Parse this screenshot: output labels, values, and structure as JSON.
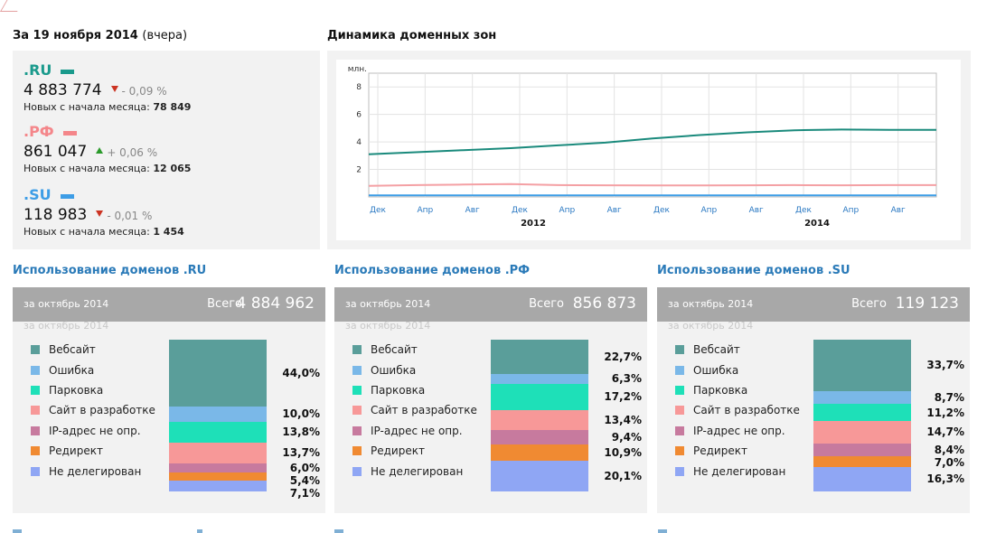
{
  "summary": {
    "title": "За 19 ноября 2014",
    "note": "(вчера)",
    "zones": [
      {
        "name": ".RU",
        "color": "#1a9a8c",
        "count": "4 883 774",
        "direction": "down",
        "change": "- 0,09 %",
        "new_label": "Новых с начала месяца:",
        "new_value": "78 849"
      },
      {
        "name": ".РФ",
        "color": "#f4868a",
        "count": "861 047",
        "direction": "up",
        "change": "+ 0,06 %",
        "new_label": "Новых с начала месяца:",
        "new_value": "12 065"
      },
      {
        "name": ".SU",
        "color": "#3d9de6",
        "count": "118 983",
        "direction": "down",
        "change": "- 0,01 %",
        "new_label": "Новых с начала месяца:",
        "new_value": "1 454"
      }
    ]
  },
  "dynamics": {
    "title": "Динамика доменных зон",
    "chart_data": {
      "type": "line",
      "ylabel": "млн.",
      "ylim": [
        0,
        9
      ],
      "y_ticks": [
        "2",
        "4",
        "6",
        "8"
      ],
      "x_ticks": [
        "Дек",
        "Апр",
        "Авг",
        "Дек",
        "Апр",
        "Авг",
        "Дек",
        "Апр",
        "Авг",
        "Дек",
        "Апр",
        "Авг"
      ],
      "x_years": [
        "2012",
        "2014"
      ],
      "x": [
        "2010-12",
        "2011-04",
        "2011-08",
        "2011-12",
        "2012-04",
        "2012-08",
        "2012-12",
        "2013-04",
        "2013-08",
        "2013-12",
        "2014-04",
        "2014-08",
        "2014-11"
      ],
      "grid": true,
      "series": [
        {
          "name": ".RU",
          "color": "#1a8a7c",
          "values": [
            3.1,
            3.25,
            3.4,
            3.55,
            3.75,
            3.95,
            4.25,
            4.5,
            4.7,
            4.85,
            4.9,
            4.88,
            4.88
          ]
        },
        {
          "name": ".РФ",
          "color": "#f4a0a4",
          "values": [
            0.8,
            0.86,
            0.9,
            0.93,
            0.86,
            0.85,
            0.84,
            0.84,
            0.85,
            0.86,
            0.85,
            0.86,
            0.86
          ]
        },
        {
          "name": ".SU",
          "color": "#3d9de6",
          "values": [
            0.12,
            0.12,
            0.12,
            0.12,
            0.12,
            0.12,
            0.12,
            0.12,
            0.12,
            0.12,
            0.12,
            0.12,
            0.12
          ]
        }
      ]
    }
  },
  "usage_legend": [
    {
      "label": "Вебсайт",
      "color": "#5a9e9a"
    },
    {
      "label": "Ошибка",
      "color": "#7ab8e8"
    },
    {
      "label": "Парковка",
      "color": "#1ee0b8"
    },
    {
      "label": "Сайт в разработке",
      "color": "#f79898"
    },
    {
      "label": "IP-адрес не опр.",
      "color": "#c77a9e"
    },
    {
      "label": "Редирект",
      "color": "#f08a32"
    },
    {
      "label": "Не делегирован",
      "color": "#8fa6f4"
    }
  ],
  "usage": [
    {
      "title": "Использование доменов .RU",
      "period": "за октябрь 2014",
      "total_label": "Всего",
      "total": "4 884 962",
      "ghost": "за октябрь 2014",
      "chart_data": {
        "type": "bar",
        "categories": [
          "Вебсайт",
          "Ошибка",
          "Парковка",
          "Сайт в разработке",
          "IP-адрес не опр.",
          "Редирект",
          "Не делегирован"
        ],
        "values": [
          44.0,
          10.0,
          13.8,
          13.7,
          6.0,
          5.4,
          7.1
        ],
        "labels": [
          "44,0%",
          "10,0%",
          "13,8%",
          "13,7%",
          "6,0%",
          "5,4%",
          "7,1%"
        ]
      }
    },
    {
      "title": "Использование доменов .РФ",
      "period": "за октябрь 2014",
      "total_label": "Всего",
      "total": "856 873",
      "ghost": "за октябрь 2014",
      "chart_data": {
        "type": "bar",
        "categories": [
          "Вебсайт",
          "Ошибка",
          "Парковка",
          "Сайт в разработке",
          "IP-адрес не опр.",
          "Редирект",
          "Не делегирован"
        ],
        "values": [
          22.7,
          6.3,
          17.2,
          13.4,
          9.4,
          10.9,
          20.1
        ],
        "labels": [
          "22,7%",
          "6,3%",
          "17,2%",
          "13,4%",
          "9,4%",
          "10,9%",
          "20,1%"
        ]
      }
    },
    {
      "title": "Использование доменов .SU",
      "period": "за октябрь 2014",
      "total_label": "Всего",
      "total": "119 123",
      "ghost": "за октябрь 2014",
      "chart_data": {
        "type": "bar",
        "categories": [
          "Вебсайт",
          "Ошибка",
          "Парковка",
          "Сайт в разработке",
          "IP-адрес не опр.",
          "Редирект",
          "Не делегирован"
        ],
        "values": [
          33.7,
          8.7,
          11.2,
          14.7,
          8.4,
          7.0,
          16.3
        ],
        "labels": [
          "33,7%",
          "8,7%",
          "11,2%",
          "14,7%",
          "8,4%",
          "7,0%",
          "16,3%"
        ]
      }
    }
  ]
}
